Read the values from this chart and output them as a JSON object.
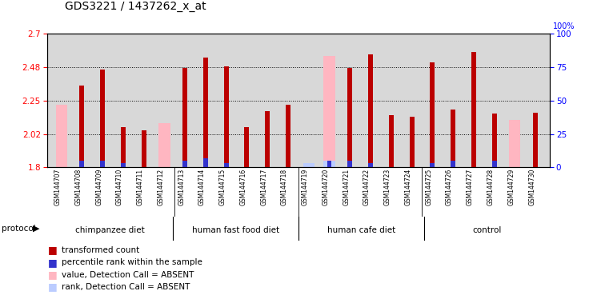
{
  "title": "GDS3221 / 1437262_x_at",
  "samples": [
    "GSM144707",
    "GSM144708",
    "GSM144709",
    "GSM144710",
    "GSM144711",
    "GSM144712",
    "GSM144713",
    "GSM144714",
    "GSM144715",
    "GSM144716",
    "GSM144717",
    "GSM144718",
    "GSM144719",
    "GSM144720",
    "GSM144721",
    "GSM144722",
    "GSM144723",
    "GSM144724",
    "GSM144725",
    "GSM144726",
    "GSM144727",
    "GSM144728",
    "GSM144729",
    "GSM144730"
  ],
  "groups": [
    {
      "label": "chimpanzee diet",
      "start": 0,
      "end": 6
    },
    {
      "label": "human fast food diet",
      "start": 6,
      "end": 12
    },
    {
      "label": "human cafe diet",
      "start": 12,
      "end": 18
    },
    {
      "label": "control",
      "start": 18,
      "end": 24
    }
  ],
  "red_values": [
    null,
    2.35,
    2.46,
    2.07,
    2.05,
    null,
    2.47,
    2.54,
    2.48,
    2.07,
    2.18,
    2.22,
    null,
    null,
    2.47,
    2.56,
    2.15,
    2.14,
    2.51,
    2.19,
    2.58,
    2.16,
    null,
    2.17
  ],
  "pink_values": [
    2.22,
    null,
    null,
    null,
    null,
    2.1,
    null,
    null,
    null,
    null,
    null,
    null,
    null,
    2.55,
    null,
    null,
    null,
    null,
    null,
    null,
    null,
    null,
    2.12,
    null
  ],
  "blue_values": [
    null,
    5,
    5,
    3,
    null,
    null,
    5,
    7,
    3,
    null,
    null,
    null,
    null,
    5,
    5,
    3,
    null,
    null,
    3,
    5,
    null,
    5,
    null,
    null
  ],
  "light_blue_values": [
    null,
    null,
    null,
    null,
    null,
    null,
    null,
    null,
    null,
    null,
    null,
    null,
    3,
    5,
    null,
    null,
    null,
    null,
    null,
    null,
    null,
    null,
    null,
    null
  ],
  "ylim_left": [
    1.8,
    2.7
  ],
  "ylim_right": [
    0,
    100
  ],
  "yticks_left": [
    1.8,
    2.025,
    2.25,
    2.475,
    2.7
  ],
  "yticks_right": [
    0,
    25,
    50,
    75,
    100
  ],
  "bar_width": 0.55,
  "red_color": "#BB0000",
  "pink_color": "#FFB6C1",
  "blue_color": "#3333CC",
  "light_blue_color": "#BBCCFF",
  "bg_plot": "#D8D8D8",
  "bg_xtick": "#C8C8C8",
  "bg_group": "#88EE88"
}
